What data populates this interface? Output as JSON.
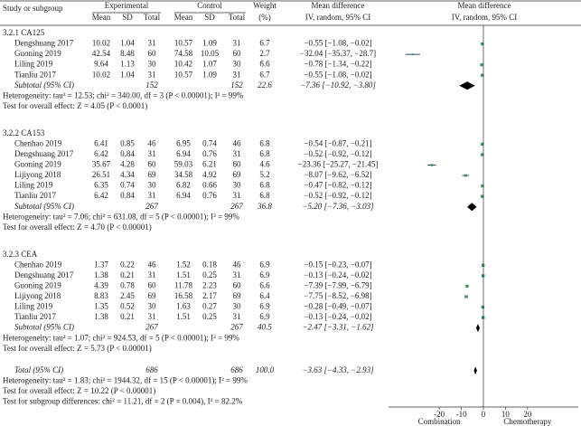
{
  "chart_data": {
    "type": "forest",
    "headers": {
      "study": "Study or subgroup",
      "experimental": "Experimental",
      "control": "Control",
      "weight": "Weight",
      "weight_unit": "(%)",
      "md": "Mean difference",
      "md_method": "IV, random, 95% CI",
      "plot_md": "Mean difference",
      "plot_method": "IV, random, 95% CI",
      "columns": [
        "Mean",
        "SD",
        "Total",
        "Mean",
        "SD",
        "Total"
      ]
    },
    "groups": [
      {
        "title": "3.2.1 CA125",
        "studies": [
          {
            "cells": [
              "Dengshuang 2017",
              10.02,
              1.04,
              31,
              10.57,
              1.09,
              31,
              6.7
            ],
            "md": -0.55,
            "ci": [
              -1.08,
              -0.02
            ],
            "md_label": "−0.55 [−1.08, −0.02]"
          },
          {
            "cells": [
              "Guoning 2019",
              42.54,
              8.48,
              60,
              74.58,
              10.05,
              60,
              2.7
            ],
            "md": -32.04,
            "ci": [
              -35.37,
              -28.7
            ],
            "md_label": "−32.04 [−35.37, −28.7]"
          },
          {
            "cells": [
              "Liling 2019",
              9.64,
              1.13,
              30,
              10.42,
              1.07,
              30,
              6.6
            ],
            "md": -0.78,
            "ci": [
              -1.34,
              -0.22
            ],
            "md_label": "−0.78 [−1.34, −0.22]"
          },
          {
            "cells": [
              "Tianliu 2017",
              10.02,
              1.04,
              31,
              10.57,
              1.09,
              31,
              6.7
            ],
            "md": -0.55,
            "ci": [
              -1.08,
              -0.02
            ],
            "md_label": "−0.55 [−1.08, −0.02]"
          }
        ],
        "subtotal": {
          "label": "Subtotal (95% CI)",
          "exp_total": 152,
          "ctl_total": 152,
          "weight": 22.6,
          "md": -7.36,
          "ci": [
            -10.92,
            -3.8
          ],
          "md_label": "−7.36 [−10.92, −3.80]"
        },
        "heterogeneity": "Heterogeneity: tau² = 12.53; chi² = 340.00, df = 3 (P < 0.00001); I² = 99%",
        "overall": "Test for overall effect: Z = 4.05 (P < 0.0001)"
      },
      {
        "title": "3.2.2 CA153",
        "studies": [
          {
            "cells": [
              "Chenhao 2019",
              6.41,
              0.85,
              46,
              6.95,
              0.74,
              46,
              6.8
            ],
            "md": -0.54,
            "ci": [
              -0.87,
              -0.21
            ],
            "md_label": "−0.54 [−0.87, −0.21]"
          },
          {
            "cells": [
              "Dengshuang 2017",
              6.42,
              0.84,
              31,
              6.94,
              0.76,
              31,
              6.8
            ],
            "md": -0.52,
            "ci": [
              -0.92,
              -0.12
            ],
            "md_label": "−0.52 [−0.92, −0.12]"
          },
          {
            "cells": [
              "Guoning 2019",
              35.67,
              4.28,
              60,
              59.03,
              6.21,
              60,
              4.6
            ],
            "md": -23.36,
            "ci": [
              -25.27,
              -21.45
            ],
            "md_label": "−23.36 [−25.27, −21.45]"
          },
          {
            "cells": [
              "Lijiyong 2018",
              26.51,
              4.34,
              69,
              34.58,
              4.92,
              69,
              5.2
            ],
            "md": -8.07,
            "ci": [
              -9.62,
              -6.52
            ],
            "md_label": "−8.07 [−9.62, −6.52]"
          },
          {
            "cells": [
              "Liling 2019",
              6.35,
              0.74,
              30,
              6.82,
              0.66,
              30,
              6.8
            ],
            "md": -0.47,
            "ci": [
              -0.82,
              -0.12
            ],
            "md_label": "−0.47 [−0.82, −0.12]"
          },
          {
            "cells": [
              "Tianliu 2017",
              6.42,
              0.84,
              31,
              6.94,
              0.76,
              31,
              6.8
            ],
            "md": -0.52,
            "ci": [
              -0.92,
              -0.12
            ],
            "md_label": "−0.52 [−0.92, −0.12]"
          }
        ],
        "subtotal": {
          "label": "Subtotal (95% CI)",
          "exp_total": 267,
          "ctl_total": 267,
          "weight": 36.8,
          "md": -5.2,
          "ci": [
            -7.36,
            -3.03
          ],
          "md_label": "−5.20 [−7.36, −3.03]"
        },
        "heterogeneity": "Heterogeneity: tau² = 7.06; chi² = 631.08, df = 5 (P < 0.00001); I² = 99%",
        "overall": "Test for overall effect: Z = 4.70 (P < 0.00001)"
      },
      {
        "title": "3.2.3 CEA",
        "studies": [
          {
            "cells": [
              "Chenhao 2019",
              1.37,
              0.22,
              46,
              1.52,
              0.18,
              46,
              6.9
            ],
            "md": -0.15,
            "ci": [
              -0.23,
              -0.07
            ],
            "md_label": "−0.15 [−0.23, −0.07]"
          },
          {
            "cells": [
              "Dengshuang 2017",
              1.38,
              0.21,
              31,
              1.51,
              0.25,
              31,
              6.9
            ],
            "md": -0.13,
            "ci": [
              -0.24,
              -0.02
            ],
            "md_label": "−0.13 [−0.24, −0.02]"
          },
          {
            "cells": [
              "Guoning 2019",
              4.39,
              0.78,
              60,
              11.78,
              2.23,
              60,
              6.6
            ],
            "md": -7.39,
            "ci": [
              -7.99,
              -6.79
            ],
            "md_label": "−7.39 [−7.99, −6.79]"
          },
          {
            "cells": [
              "Lijiyong 2018",
              8.83,
              2.45,
              69,
              16.58,
              2.17,
              69,
              6.4
            ],
            "md": -7.75,
            "ci": [
              -8.52,
              -6.98
            ],
            "md_label": "−7.75 [−8.52, −6.98]"
          },
          {
            "cells": [
              "Liling 2019",
              1.35,
              0.52,
              30,
              1.63,
              0.27,
              30,
              6.9
            ],
            "md": -0.28,
            "ci": [
              -0.49,
              -0.07
            ],
            "md_label": "−0.28 [−0.49, −0.07]"
          },
          {
            "cells": [
              "Tianliu 2017",
              1.38,
              0.21,
              31,
              1.51,
              0.25,
              31,
              6.9
            ],
            "md": -0.13,
            "ci": [
              -0.24,
              -0.02
            ],
            "md_label": "−0.13 [−0.24, −0.02]"
          }
        ],
        "subtotal": {
          "label": "Subtotal (95% CI)",
          "exp_total": 267,
          "ctl_total": 267,
          "weight": 40.5,
          "md": -2.47,
          "ci": [
            -3.31,
            -1.62
          ],
          "md_label": "−2.47 [−3.31, −1.62]"
        },
        "heterogeneity": "Heterogeneity: tau² = 1.07; chi² = 924.53, df = 5 (P < 0.00001); I² = 99%",
        "overall": "Test for overall effect: Z = 5.73 (P < 0.00001)"
      }
    ],
    "total": {
      "label": "Total (95% CI)",
      "exp_total": 686,
      "ctl_total": 686,
      "weight": {
        "value": 100,
        "label": "100.0"
      },
      "md": -3.63,
      "ci": [
        -4.33,
        -2.93
      ],
      "md_label": "−3.63 [−4.33, −2.93]",
      "heterogeneity": "Heterogeneity: tau² = 1.83; chi² = 1944.32, df = 15 (P < 0.00001); I² = 99%",
      "overall": "Test for overall effect: Z = 10.22 (P < 0.00001)",
      "subgroup": "Test for subgroup differences: chi² = 11.21, df = 2 (P = 0.004), I² = 82.2%"
    },
    "xlim": [
      -43,
      43
    ],
    "xticks": [
      -20,
      -10,
      0,
      10,
      20
    ],
    "x_left_label": "Combination",
    "x_right_label": "Chemotherapy",
    "square_color": "#3a9a5b",
    "ci_color": "#2b4c7e",
    "diamond_color": "#000000"
  }
}
